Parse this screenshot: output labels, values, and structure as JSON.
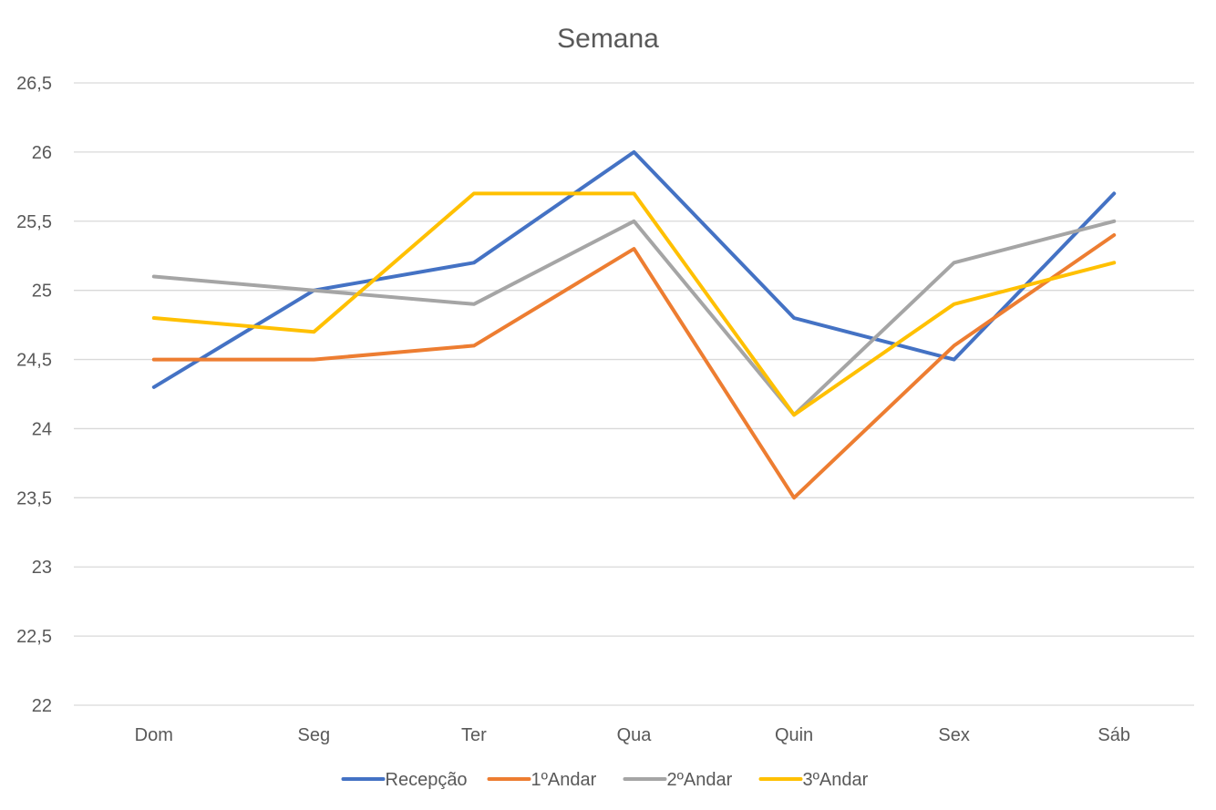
{
  "chart_data": {
    "type": "line",
    "title": "Semana",
    "xlabel": "",
    "ylabel": "",
    "categories": [
      "Dom",
      "Seg",
      "Ter",
      "Qua",
      "Quin",
      "Sex",
      "Sáb"
    ],
    "ylim": [
      22,
      26.5
    ],
    "ytick_values": [
      22,
      22.5,
      23,
      23.5,
      24,
      24.5,
      25,
      25.5,
      26,
      26.5
    ],
    "ytick_labels": [
      "22",
      "22,5",
      "23",
      "23,5",
      "24",
      "24,5",
      "25",
      "25,5",
      "26",
      "26,5"
    ],
    "grid": true,
    "legend_position": "bottom",
    "series": [
      {
        "name": "Recepção",
        "color": "#4472c4",
        "values": [
          24.3,
          25.0,
          25.2,
          26.0,
          24.8,
          24.5,
          25.7
        ]
      },
      {
        "name": "1ºAndar",
        "color": "#ed7d31",
        "values": [
          24.5,
          24.5,
          24.6,
          25.3,
          23.5,
          24.6,
          25.4
        ]
      },
      {
        "name": "2ºAndar",
        "color": "#a5a5a5",
        "values": [
          25.1,
          25.0,
          24.9,
          25.5,
          24.1,
          25.2,
          25.5
        ]
      },
      {
        "name": "3ºAndar",
        "color": "#ffc000",
        "values": [
          24.8,
          24.7,
          25.7,
          25.7,
          24.1,
          24.9,
          25.2
        ]
      }
    ]
  }
}
